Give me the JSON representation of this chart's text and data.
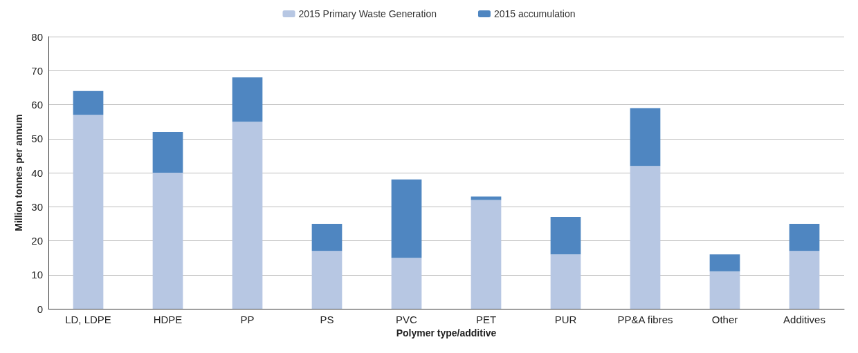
{
  "chart_data": {
    "type": "bar",
    "stacked": true,
    "xlabel": "Polymer type/additive",
    "ylabel": "Million tonnes per annum",
    "categories": [
      "LD, LDPE",
      "HDPE",
      "PP",
      "PS",
      "PVC",
      "PET",
      "PUR",
      "PP&A fibres",
      "Other",
      "Additives"
    ],
    "series": [
      {
        "name": "2015 Primary Waste Generation",
        "color": "#b7c7e3",
        "values": [
          57,
          40,
          55,
          17,
          15,
          32,
          16,
          42,
          11,
          17
        ]
      },
      {
        "name": "2015 accumulation",
        "color": "#4f86c1",
        "values": [
          7,
          12,
          13,
          8,
          23,
          1,
          11,
          17,
          5,
          8
        ]
      }
    ],
    "ylim": [
      0,
      80
    ],
    "yticks": [
      0,
      10,
      20,
      30,
      40,
      50,
      60,
      70,
      80
    ],
    "grid": "y",
    "legend": "top"
  }
}
